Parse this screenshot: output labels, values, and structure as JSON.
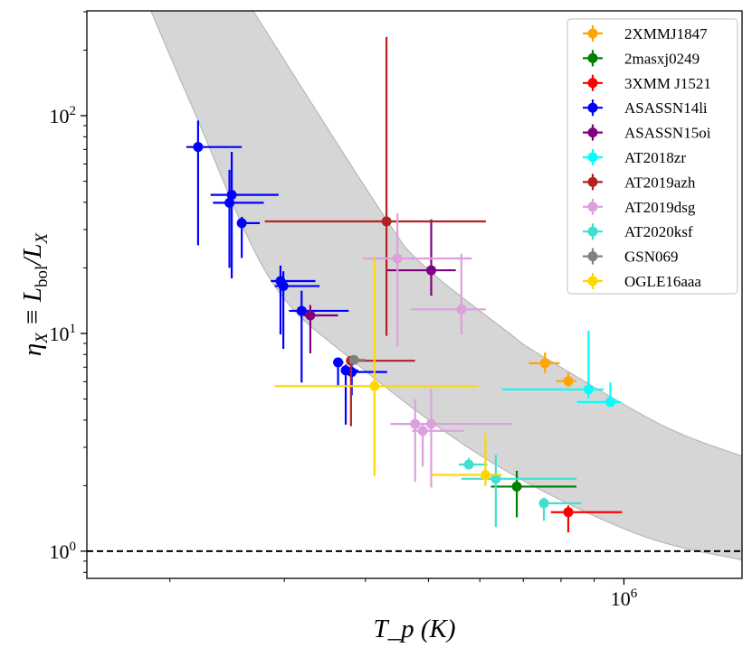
{
  "chart_data": {
    "type": "scatter",
    "title": "",
    "xlabel": "T_p (K)",
    "ylabel": "η_X ≡ L_{bol}/L_X",
    "xscale": "log",
    "yscale": "log",
    "xlim": [
      149000,
      1520000
    ],
    "ylim": [
      0.75,
      303
    ],
    "x_ticks": [
      {
        "value": 1000000,
        "base": "10",
        "exp": "6"
      }
    ],
    "y_ticks": [
      {
        "value": 1,
        "base": "10",
        "exp": "0"
      },
      {
        "value": 10,
        "base": "10",
        "exp": "1"
      },
      {
        "value": 100,
        "base": "10",
        "exp": "2"
      }
    ],
    "legend_position": "top-right",
    "grid": false,
    "reference_line": {
      "eta": 1,
      "style": "dashed",
      "color": "#000000"
    },
    "band": {
      "color": "#d6d6d6",
      "upper": [
        [
          269000,
          303
        ],
        [
          273000,
          281
        ],
        [
          422000,
          36.6
        ],
        [
          490000,
          20.7
        ],
        [
          661000,
          10.2
        ],
        [
          745000,
          7.94
        ],
        [
          1140000,
          3.81
        ],
        [
          1520000,
          2.73
        ]
      ],
      "lower": [
        [
          187000,
          303
        ],
        [
          217000,
          108
        ],
        [
          284000,
          18.2
        ],
        [
          379000,
          7.67
        ],
        [
          620000,
          2.6
        ],
        [
          1040000,
          1.21
        ],
        [
          1520000,
          0.91
        ]
      ]
    },
    "point_format": [
      "T",
      "T_low",
      "T_high",
      "eta",
      "eta_low",
      "eta_high"
    ],
    "series": [
      {
        "name": "2XMMJ1847",
        "color": "#FFA500",
        "points": [
          [
            756000,
            714000,
            796000,
            7.3,
            6.59,
            8.18
          ],
          [
            821000,
            786000,
            845000,
            6.04,
            5.68,
            6.59
          ]
        ]
      },
      {
        "name": "2masxj0249",
        "color": "#008000",
        "points": [
          [
            684000,
            624000,
            845000,
            1.98,
            1.43,
            2.34
          ]
        ]
      },
      {
        "name": "3XMM J1521",
        "color": "#FF0000",
        "points": [
          [
            821000,
            772000,
            993000,
            1.51,
            1.22,
            1.62
          ]
        ]
      },
      {
        "name": "ASASSN14li",
        "color": "#0000FF",
        "points": [
          [
            221000,
            212000,
            258000,
            71.8,
            25.4,
            95
          ],
          [
            249000,
            231000,
            294000,
            43.3,
            17.9,
            68.2
          ],
          [
            247000,
            233000,
            279000,
            39.8,
            20.0,
            56.4
          ],
          [
            258000,
            256000,
            275000,
            32.1,
            22.2,
            34.3
          ],
          [
            296000,
            286000,
            335000,
            17.4,
            9.9,
            20.5
          ],
          [
            299000,
            290000,
            340000,
            16.5,
            8.5,
            19.3
          ],
          [
            319000,
            305000,
            377000,
            12.7,
            5.95,
            15.7
          ],
          [
            363000,
            360000,
            370000,
            7.36,
            5.76,
            7.7
          ],
          [
            373000,
            367000,
            390000,
            6.76,
            3.81,
            7.2
          ],
          [
            381000,
            375000,
            432000,
            6.65,
            5.2,
            7.1
          ]
        ]
      },
      {
        "name": "ASASSN15oi",
        "color": "#800080",
        "points": [
          [
            329000,
            321000,
            363000,
            12.1,
            8.1,
            13.5
          ],
          [
            505000,
            431000,
            551000,
            19.5,
            14.9,
            33.4
          ]
        ]
      },
      {
        "name": "AT2018zr",
        "color": "#00FFFF",
        "points": [
          [
            882000,
            649000,
            931000,
            5.53,
            5.03,
            10.3
          ],
          [
            953000,
            847000,
            990000,
            4.84,
            4.64,
            5.96
          ]
        ]
      },
      {
        "name": "AT2019azh",
        "color": "#B22222",
        "points": [
          [
            431000,
            280000,
            613000,
            32.7,
            9.75,
            230
          ],
          [
            380000,
            375000,
            477000,
            7.49,
            3.75,
            7.6
          ]
        ]
      },
      {
        "name": "AT2019dsg",
        "color": "#DDA0DD",
        "points": [
          [
            448000,
            396000,
            583000,
            22.1,
            8.7,
            35.6
          ],
          [
            562000,
            470000,
            613000,
            12.9,
            9.9,
            23.2
          ],
          [
            477000,
            437000,
            500000,
            3.84,
            2.08,
            4.99
          ],
          [
            490000,
            472000,
            567000,
            3.57,
            2.45,
            3.8
          ],
          [
            505000,
            449000,
            674000,
            3.84,
            1.96,
            5.55
          ]
        ]
      },
      {
        "name": "AT2020ksf",
        "color": "#40E0D0",
        "points": [
          [
            577000,
            557000,
            616000,
            2.5,
            2.38,
            2.68
          ],
          [
            635000,
            562000,
            845000,
            2.15,
            1.29,
            2.77
          ],
          [
            753000,
            743000,
            860000,
            1.66,
            1.38,
            1.76
          ]
        ]
      },
      {
        "name": "GSN069",
        "color": "#808080",
        "points": [
          [
            384000,
            378000,
            400000,
            7.56,
            7.3,
            7.8
          ]
        ]
      },
      {
        "name": "OGLE16aaa",
        "color": "#FFD700",
        "points": [
          [
            413000,
            290000,
            597000,
            5.73,
            2.22,
            22.2
          ],
          [
            612000,
            505000,
            649000,
            2.24,
            1.99,
            3.49
          ]
        ]
      }
    ]
  }
}
